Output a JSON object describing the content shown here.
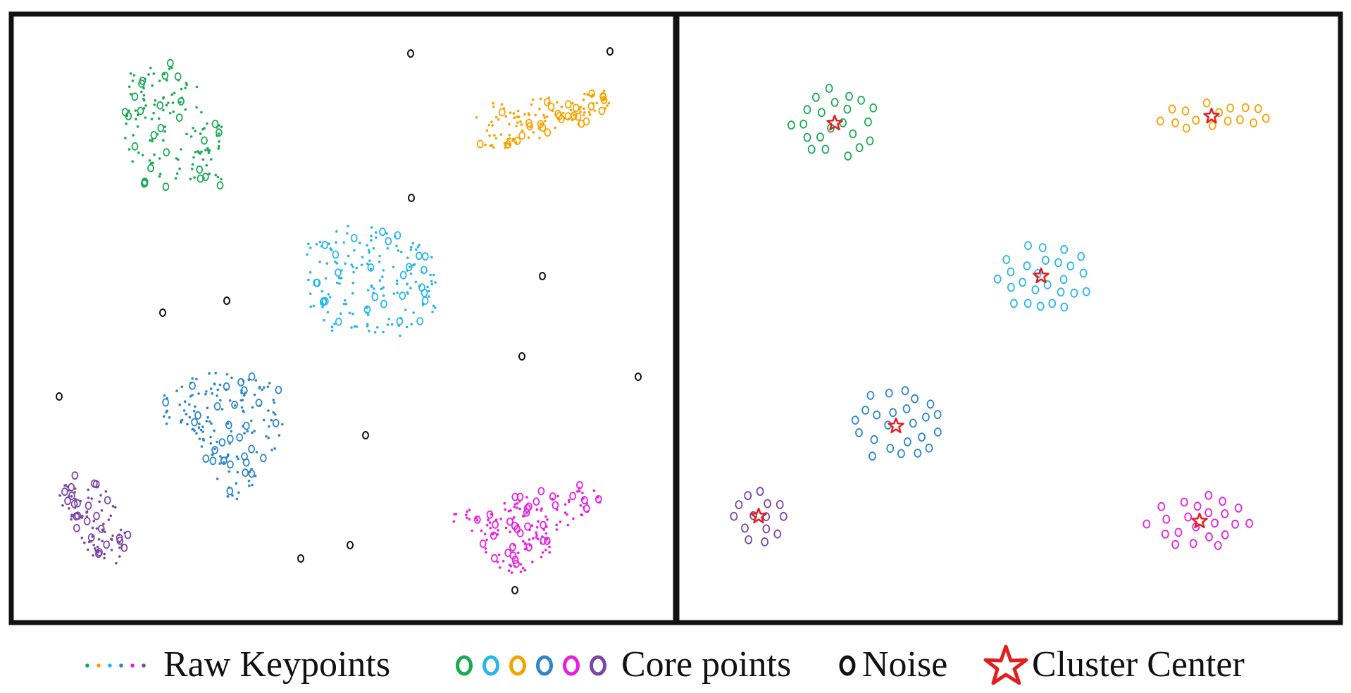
{
  "legend": {
    "raw_keypoints_label": "Raw Keypoints",
    "core_points_label": "Core points",
    "noise_label": "Noise",
    "cluster_center_label": "Cluster Center"
  },
  "colors": {
    "green": "#1aaa55",
    "cyan": "#29b6e8",
    "orange": "#f5a300",
    "blue": "#2d86c8",
    "magenta": "#e81fe0",
    "purple": "#7b46a6",
    "noise": "#111111",
    "center": "#e02020",
    "frame": "#111111"
  },
  "legend_color_order": [
    "green",
    "cyan",
    "orange",
    "blue",
    "magenta",
    "purple"
  ],
  "raw_dot_color_order": [
    "green",
    "orange",
    "cyan",
    "blue",
    "magenta",
    "purple"
  ],
  "clusters": [
    {
      "name": "green",
      "color_key": "green"
    },
    {
      "name": "orange",
      "color_key": "orange"
    },
    {
      "name": "cyan",
      "color_key": "cyan"
    },
    {
      "name": "blue",
      "color_key": "blue"
    },
    {
      "name": "purple",
      "color_key": "purple"
    },
    {
      "name": "magenta",
      "color_key": "magenta"
    }
  ]
}
